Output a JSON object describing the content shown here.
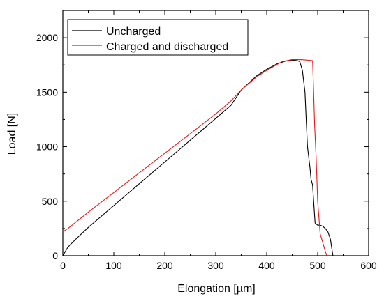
{
  "chart_data": {
    "type": "line",
    "title": "",
    "xlabel": "Elongation [µm]",
    "ylabel": "Load [N]",
    "xlim": [
      0,
      600
    ],
    "ylim": [
      0,
      2250
    ],
    "x_ticks": [
      "0",
      "100",
      "200",
      "300",
      "400",
      "500",
      "600"
    ],
    "y_ticks": [
      "0",
      "500",
      "1000",
      "1500",
      "2000"
    ],
    "grid": false,
    "legend_position": "top-left",
    "series": [
      {
        "name": "Uncharged",
        "color": "#000000",
        "points": [
          [
            0,
            0
          ],
          [
            5,
            40
          ],
          [
            10,
            80
          ],
          [
            25,
            150
          ],
          [
            50,
            260
          ],
          [
            100,
            460
          ],
          [
            150,
            660
          ],
          [
            200,
            860
          ],
          [
            250,
            1060
          ],
          [
            300,
            1260
          ],
          [
            330,
            1380
          ],
          [
            350,
            1520
          ],
          [
            380,
            1650
          ],
          [
            400,
            1710
          ],
          [
            420,
            1760
          ],
          [
            440,
            1790
          ],
          [
            450,
            1795
          ],
          [
            460,
            1790
          ],
          [
            465,
            1780
          ],
          [
            470,
            1700
          ],
          [
            475,
            1500
          ],
          [
            478,
            1200
          ],
          [
            480,
            1000
          ],
          [
            485,
            800
          ],
          [
            487,
            700
          ],
          [
            490,
            650
          ],
          [
            492,
            500
          ],
          [
            495,
            300
          ],
          [
            500,
            280
          ],
          [
            505,
            280
          ],
          [
            510,
            270
          ],
          [
            515,
            250
          ],
          [
            520,
            220
          ],
          [
            525,
            150
          ],
          [
            528,
            60
          ],
          [
            530,
            0
          ]
        ]
      },
      {
        "name": "Charged and discharged",
        "color": "#e8191c",
        "points": [
          [
            0,
            220
          ],
          [
            10,
            250
          ],
          [
            50,
            400
          ],
          [
            100,
            580
          ],
          [
            150,
            760
          ],
          [
            200,
            940
          ],
          [
            250,
            1120
          ],
          [
            300,
            1300
          ],
          [
            330,
            1420
          ],
          [
            350,
            1520
          ],
          [
            380,
            1640
          ],
          [
            400,
            1700
          ],
          [
            430,
            1780
          ],
          [
            450,
            1800
          ],
          [
            470,
            1798
          ],
          [
            490,
            1790
          ],
          [
            492,
            1500
          ],
          [
            494,
            1200
          ],
          [
            497,
            900
          ],
          [
            500,
            500
          ],
          [
            505,
            200
          ],
          [
            510,
            120
          ],
          [
            515,
            40
          ],
          [
            518,
            0
          ]
        ]
      }
    ]
  }
}
